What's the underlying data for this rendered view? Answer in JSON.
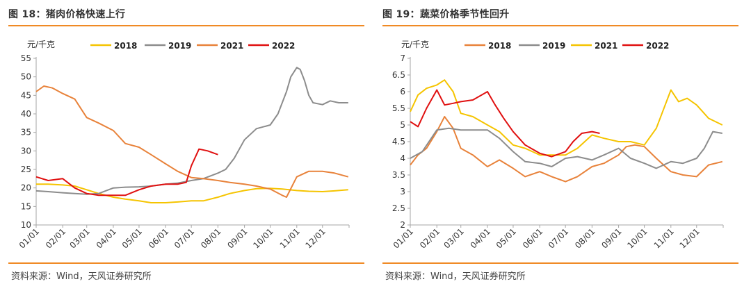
{
  "charts": [
    {
      "title": "图 18：猪肉价格快速上行",
      "source": "资料来源：Wind，天风证券研究所",
      "chart_data": {
        "type": "line",
        "unit": "元/千克",
        "ylim": [
          10,
          55
        ],
        "yticks": [
          10,
          15,
          20,
          25,
          30,
          35,
          40,
          45,
          50,
          55
        ],
        "x_tick_labels": [
          "01/01",
          "02/01",
          "03/01",
          "04/01",
          "05/01",
          "06/01",
          "07/01",
          "08/01",
          "09/01",
          "10/01",
          "11/01",
          "12/01"
        ],
        "grid": false,
        "legend_position": "top",
        "series": [
          {
            "name": "2018",
            "color": "#f5c400",
            "x": [
              "01/01",
              "01/15",
              "02/01",
              "02/15",
              "03/01",
              "03/15",
              "04/01",
              "04/15",
              "05/01",
              "05/15",
              "06/01",
              "06/15",
              "07/01",
              "07/15",
              "08/01",
              "08/15",
              "09/01",
              "09/15",
              "10/01",
              "10/15",
              "11/01",
              "11/15",
              "12/01",
              "12/15",
              "12/31"
            ],
            "y": [
              21,
              21,
              20.8,
              20.5,
              19.5,
              18.5,
              17.5,
              17,
              16.5,
              16,
              16,
              16.2,
              16.5,
              16.5,
              17.5,
              18.5,
              19.3,
              19.8,
              19.9,
              19.7,
              19.3,
              19.1,
              19,
              19.2,
              19.5
            ]
          },
          {
            "name": "2019",
            "color": "#8c8c8c",
            "x": [
              "01/01",
              "01/15",
              "02/01",
              "02/15",
              "03/01",
              "03/15",
              "04/01",
              "04/15",
              "05/01",
              "05/15",
              "06/01",
              "06/15",
              "07/01",
              "07/15",
              "08/01",
              "08/10",
              "08/20",
              "09/01",
              "09/15",
              "10/01",
              "10/10",
              "10/20",
              "10/25",
              "11/01",
              "11/05",
              "11/10",
              "11/15",
              "11/20",
              "12/01",
              "12/10",
              "12/20",
              "12/31"
            ],
            "y": [
              19.2,
              19,
              18.7,
              18.5,
              18.3,
              18.5,
              20,
              20.2,
              20.3,
              20.5,
              21,
              21.3,
              22,
              22.5,
              24,
              25,
              28,
              33,
              36,
              37,
              40,
              46,
              50,
              52.5,
              52,
              49,
              45,
              43,
              42.5,
              43.5,
              43,
              43
            ]
          },
          {
            "name": "2021",
            "color": "#e8823a",
            "x": [
              "01/01",
              "01/10",
              "01/20",
              "02/01",
              "02/15",
              "03/01",
              "03/15",
              "04/01",
              "04/15",
              "05/01",
              "05/15",
              "06/01",
              "06/15",
              "07/01",
              "07/15",
              "08/01",
              "08/15",
              "09/01",
              "09/15",
              "10/01",
              "10/15",
              "10/20",
              "11/01",
              "11/15",
              "12/01",
              "12/15",
              "12/31"
            ],
            "y": [
              46,
              47.5,
              47,
              45.5,
              44,
              39,
              37.5,
              35.5,
              32,
              31,
              29,
              26.5,
              24.5,
              22.8,
              22.5,
              22,
              21.5,
              21,
              20.5,
              19.7,
              18,
              17.5,
              23,
              24.5,
              24.5,
              24,
              23
            ]
          },
          {
            "name": "2022",
            "color": "#e01010",
            "x": [
              "01/01",
              "01/15",
              "02/01",
              "02/15",
              "03/01",
              "03/15",
              "04/01",
              "04/15",
              "05/01",
              "05/15",
              "06/01",
              "06/15",
              "06/25",
              "07/01",
              "07/10",
              "07/20",
              "08/01"
            ],
            "y": [
              23,
              22,
              22.5,
              20,
              18.5,
              18,
              18,
              18,
              19.5,
              20.5,
              21,
              21,
              21.5,
              26,
              30.5,
              30,
              29
            ]
          }
        ]
      }
    },
    {
      "title": "图 19：蔬菜价格季节性回升",
      "source": "资料来源：Wind，天风证券研究所",
      "chart_data": {
        "type": "line",
        "unit": "元/千克",
        "ylim": [
          2,
          7
        ],
        "yticks": [
          2,
          2.5,
          3,
          3.5,
          4,
          4.5,
          5,
          5.5,
          6,
          6.5,
          7
        ],
        "x_tick_labels": [
          "01/01",
          "02/01",
          "03/01",
          "04/01",
          "05/01",
          "06/01",
          "07/01",
          "08/01",
          "09/01",
          "10/01",
          "11/01",
          "12/01"
        ],
        "grid": false,
        "legend_position": "top",
        "series": [
          {
            "name": "2018",
            "color": "#e8823a",
            "x": [
              "01/01",
              "01/10",
              "01/20",
              "02/01",
              "02/10",
              "02/20",
              "03/01",
              "03/15",
              "04/01",
              "04/15",
              "05/01",
              "05/15",
              "06/01",
              "06/15",
              "07/01",
              "07/15",
              "08/01",
              "08/15",
              "09/01",
              "09/10",
              "09/20",
              "10/01",
              "10/15",
              "11/01",
              "11/15",
              "12/01",
              "12/15",
              "12/31"
            ],
            "y": [
              3.8,
              4.1,
              4.3,
              4.8,
              5.25,
              4.9,
              4.3,
              4.1,
              3.75,
              3.95,
              3.7,
              3.45,
              3.6,
              3.45,
              3.3,
              3.45,
              3.75,
              3.85,
              4.1,
              4.35,
              4.4,
              4.35,
              4.0,
              3.6,
              3.5,
              3.45,
              3.8,
              3.9
            ]
          },
          {
            "name": "2019",
            "color": "#8c8c8c",
            "x": [
              "01/01",
              "01/15",
              "02/01",
              "02/15",
              "03/01",
              "03/15",
              "04/01",
              "04/15",
              "05/01",
              "05/15",
              "06/01",
              "06/15",
              "07/01",
              "07/15",
              "08/01",
              "08/15",
              "09/01",
              "09/15",
              "10/01",
              "10/15",
              "11/01",
              "11/15",
              "12/01",
              "12/10",
              "12/20",
              "12/31"
            ],
            "y": [
              4.0,
              4.2,
              4.85,
              4.9,
              4.85,
              4.85,
              4.85,
              4.6,
              4.2,
              3.9,
              3.85,
              3.75,
              4.0,
              4.05,
              3.95,
              4.1,
              4.3,
              4.0,
              3.85,
              3.7,
              3.9,
              3.85,
              4.0,
              4.3,
              4.8,
              4.75
            ]
          },
          {
            "name": "2021",
            "color": "#f5c400",
            "x": [
              "01/01",
              "01/10",
              "01/20",
              "02/01",
              "02/10",
              "02/20",
              "03/01",
              "03/15",
              "04/01",
              "04/15",
              "05/01",
              "05/15",
              "06/01",
              "06/15",
              "07/01",
              "07/15",
              "08/01",
              "08/15",
              "09/01",
              "09/15",
              "10/01",
              "10/15",
              "11/01",
              "11/10",
              "11/20",
              "12/01",
              "12/15",
              "12/31"
            ],
            "y": [
              5.4,
              5.9,
              6.1,
              6.2,
              6.35,
              6.0,
              5.35,
              5.25,
              5.0,
              4.8,
              4.4,
              4.3,
              4.1,
              4.1,
              4.1,
              4.3,
              4.7,
              4.6,
              4.5,
              4.5,
              4.4,
              4.9,
              6.05,
              5.7,
              5.8,
              5.6,
              5.2,
              5.0
            ]
          },
          {
            "name": "2022",
            "color": "#e01010",
            "x": [
              "01/01",
              "01/10",
              "01/20",
              "02/01",
              "02/10",
              "02/20",
              "03/01",
              "03/15",
              "04/01",
              "04/10",
              "04/20",
              "05/01",
              "05/15",
              "06/01",
              "06/15",
              "07/01",
              "07/10",
              "07/20",
              "08/01",
              "08/10"
            ],
            "y": [
              5.1,
              4.95,
              5.5,
              6.05,
              5.6,
              5.65,
              5.7,
              5.75,
              6.0,
              5.6,
              5.2,
              4.8,
              4.4,
              4.15,
              4.05,
              4.2,
              4.5,
              4.75,
              4.8,
              4.75
            ]
          }
        ]
      }
    }
  ]
}
